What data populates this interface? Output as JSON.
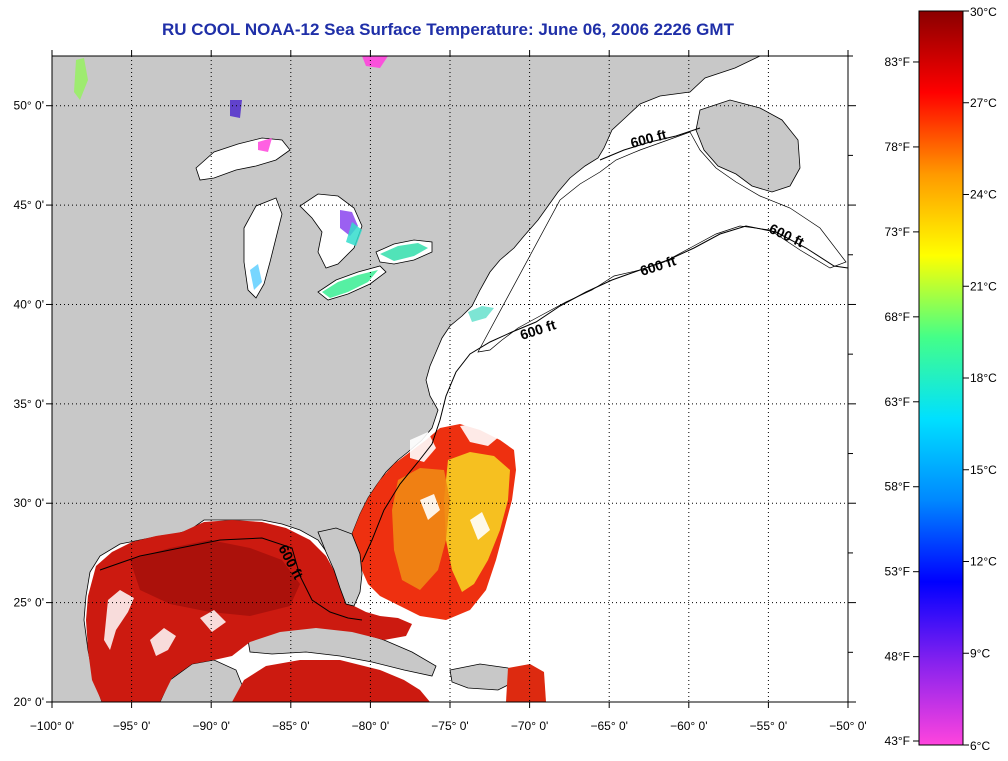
{
  "title": "RU COOL  NOAA-12  Sea Surface Temperature:  June 06, 2006 2226 GMT",
  "map": {
    "lon_range": [
      -100,
      -50
    ],
    "lat_range": [
      20,
      52.5
    ],
    "lon_ticks": [
      "−100° 0'",
      "−95° 0'",
      "−90° 0'",
      "−85° 0'",
      "−80° 0'",
      "−75° 0'",
      "−70° 0'",
      "−65° 0'",
      "−60° 0'",
      "−55° 0'",
      "−50° 0'"
    ],
    "lat_ticks": [
      "20° 0'",
      "25° 0'",
      "30° 0'",
      "35° 0'",
      "40° 0'",
      "45° 0'",
      "50° 0'"
    ],
    "contour_labels": [
      "600 ft",
      "600 ft",
      "600 ft",
      "600 ft",
      "600 ft"
    ],
    "grid": "dotted",
    "land_color": "#c8c8c8",
    "ocean_color": "#ffffff"
  },
  "colorbar": {
    "range_c": [
      6,
      30
    ],
    "celsius_labels": [
      "30°C",
      "27°C",
      "24°C",
      "21°C",
      "18°C",
      "15°C",
      "12°C",
      "9°C",
      "6°C"
    ],
    "fahrenheit_labels": [
      "83°F",
      "78°F",
      "73°F",
      "68°F",
      "63°F",
      "58°F",
      "53°F",
      "48°F",
      "43°F"
    ],
    "stops": [
      "#ff44dd",
      "#8822ee",
      "#0000ff",
      "#0088ff",
      "#00e0ff",
      "#44ff88",
      "#ffff00",
      "#ff9900",
      "#ff0000",
      "#8a0000"
    ]
  }
}
